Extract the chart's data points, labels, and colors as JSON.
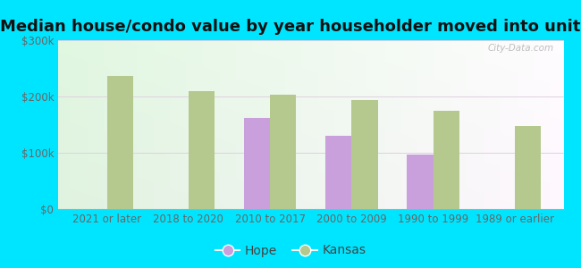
{
  "title": "Median house/condo value by year householder moved into unit",
  "categories": [
    "2021 or later",
    "2018 to 2020",
    "2010 to 2017",
    "2000 to 2009",
    "1990 to 1999",
    "1989 or earlier"
  ],
  "hope_values": [
    null,
    null,
    162000,
    130000,
    97000,
    null
  ],
  "kansas_values": [
    237000,
    210000,
    203000,
    193000,
    175000,
    148000
  ],
  "hope_color": "#c9a0dc",
  "kansas_color": "#b5c98e",
  "background_outer": "#00e5ff",
  "ylim": [
    0,
    300000
  ],
  "yticks": [
    0,
    100000,
    200000,
    300000
  ],
  "ytick_labels": [
    "$0",
    "$100k",
    "$200k",
    "$300k"
  ],
  "bar_width": 0.32,
  "legend_hope": "Hope",
  "legend_kansas": "Kansas",
  "watermark": "City-Data.com",
  "title_fontsize": 13,
  "tick_fontsize": 8.5,
  "legend_fontsize": 10
}
